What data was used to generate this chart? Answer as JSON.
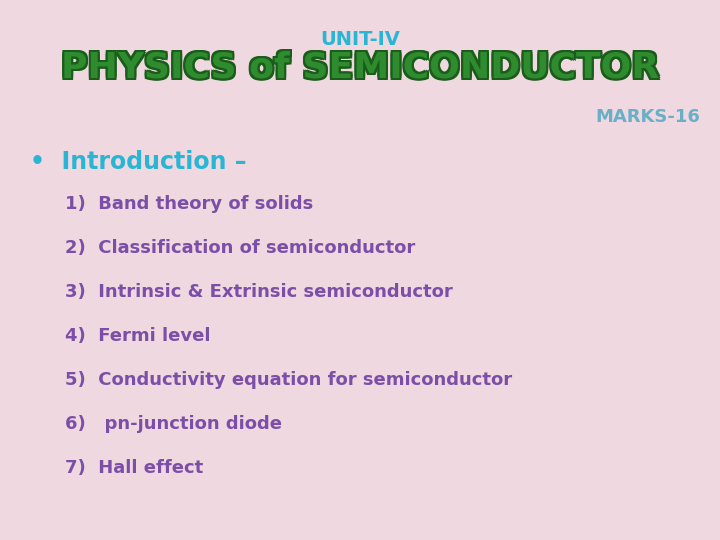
{
  "bg_color": "#efd8e0",
  "unit_text": "UNIT-IV",
  "unit_color": "#29b6d4",
  "title_text": "PHYSICS of SEMICONDUCTOR",
  "title_color": "#2e8b2e",
  "title_outline_color": "#1a5c1a",
  "marks_text": "MARKS-16",
  "marks_color": "#6aafc8",
  "intro_text": "•  Introduction –",
  "intro_color": "#29b6d4",
  "items": [
    "1)  Band theory of solids",
    "2)  Classification of semiconductor",
    "3)  Intrinsic & Extrinsic semiconductor",
    "4)  Fermi level",
    "5)  Conductivity equation for semiconductor",
    "6)   pn-junction diode",
    "7)  Hall effect"
  ],
  "items_color": "#7b4fa8",
  "unit_fontsize": 14,
  "title_fontsize": 26,
  "marks_fontsize": 13,
  "intro_fontsize": 17,
  "items_fontsize": 13
}
